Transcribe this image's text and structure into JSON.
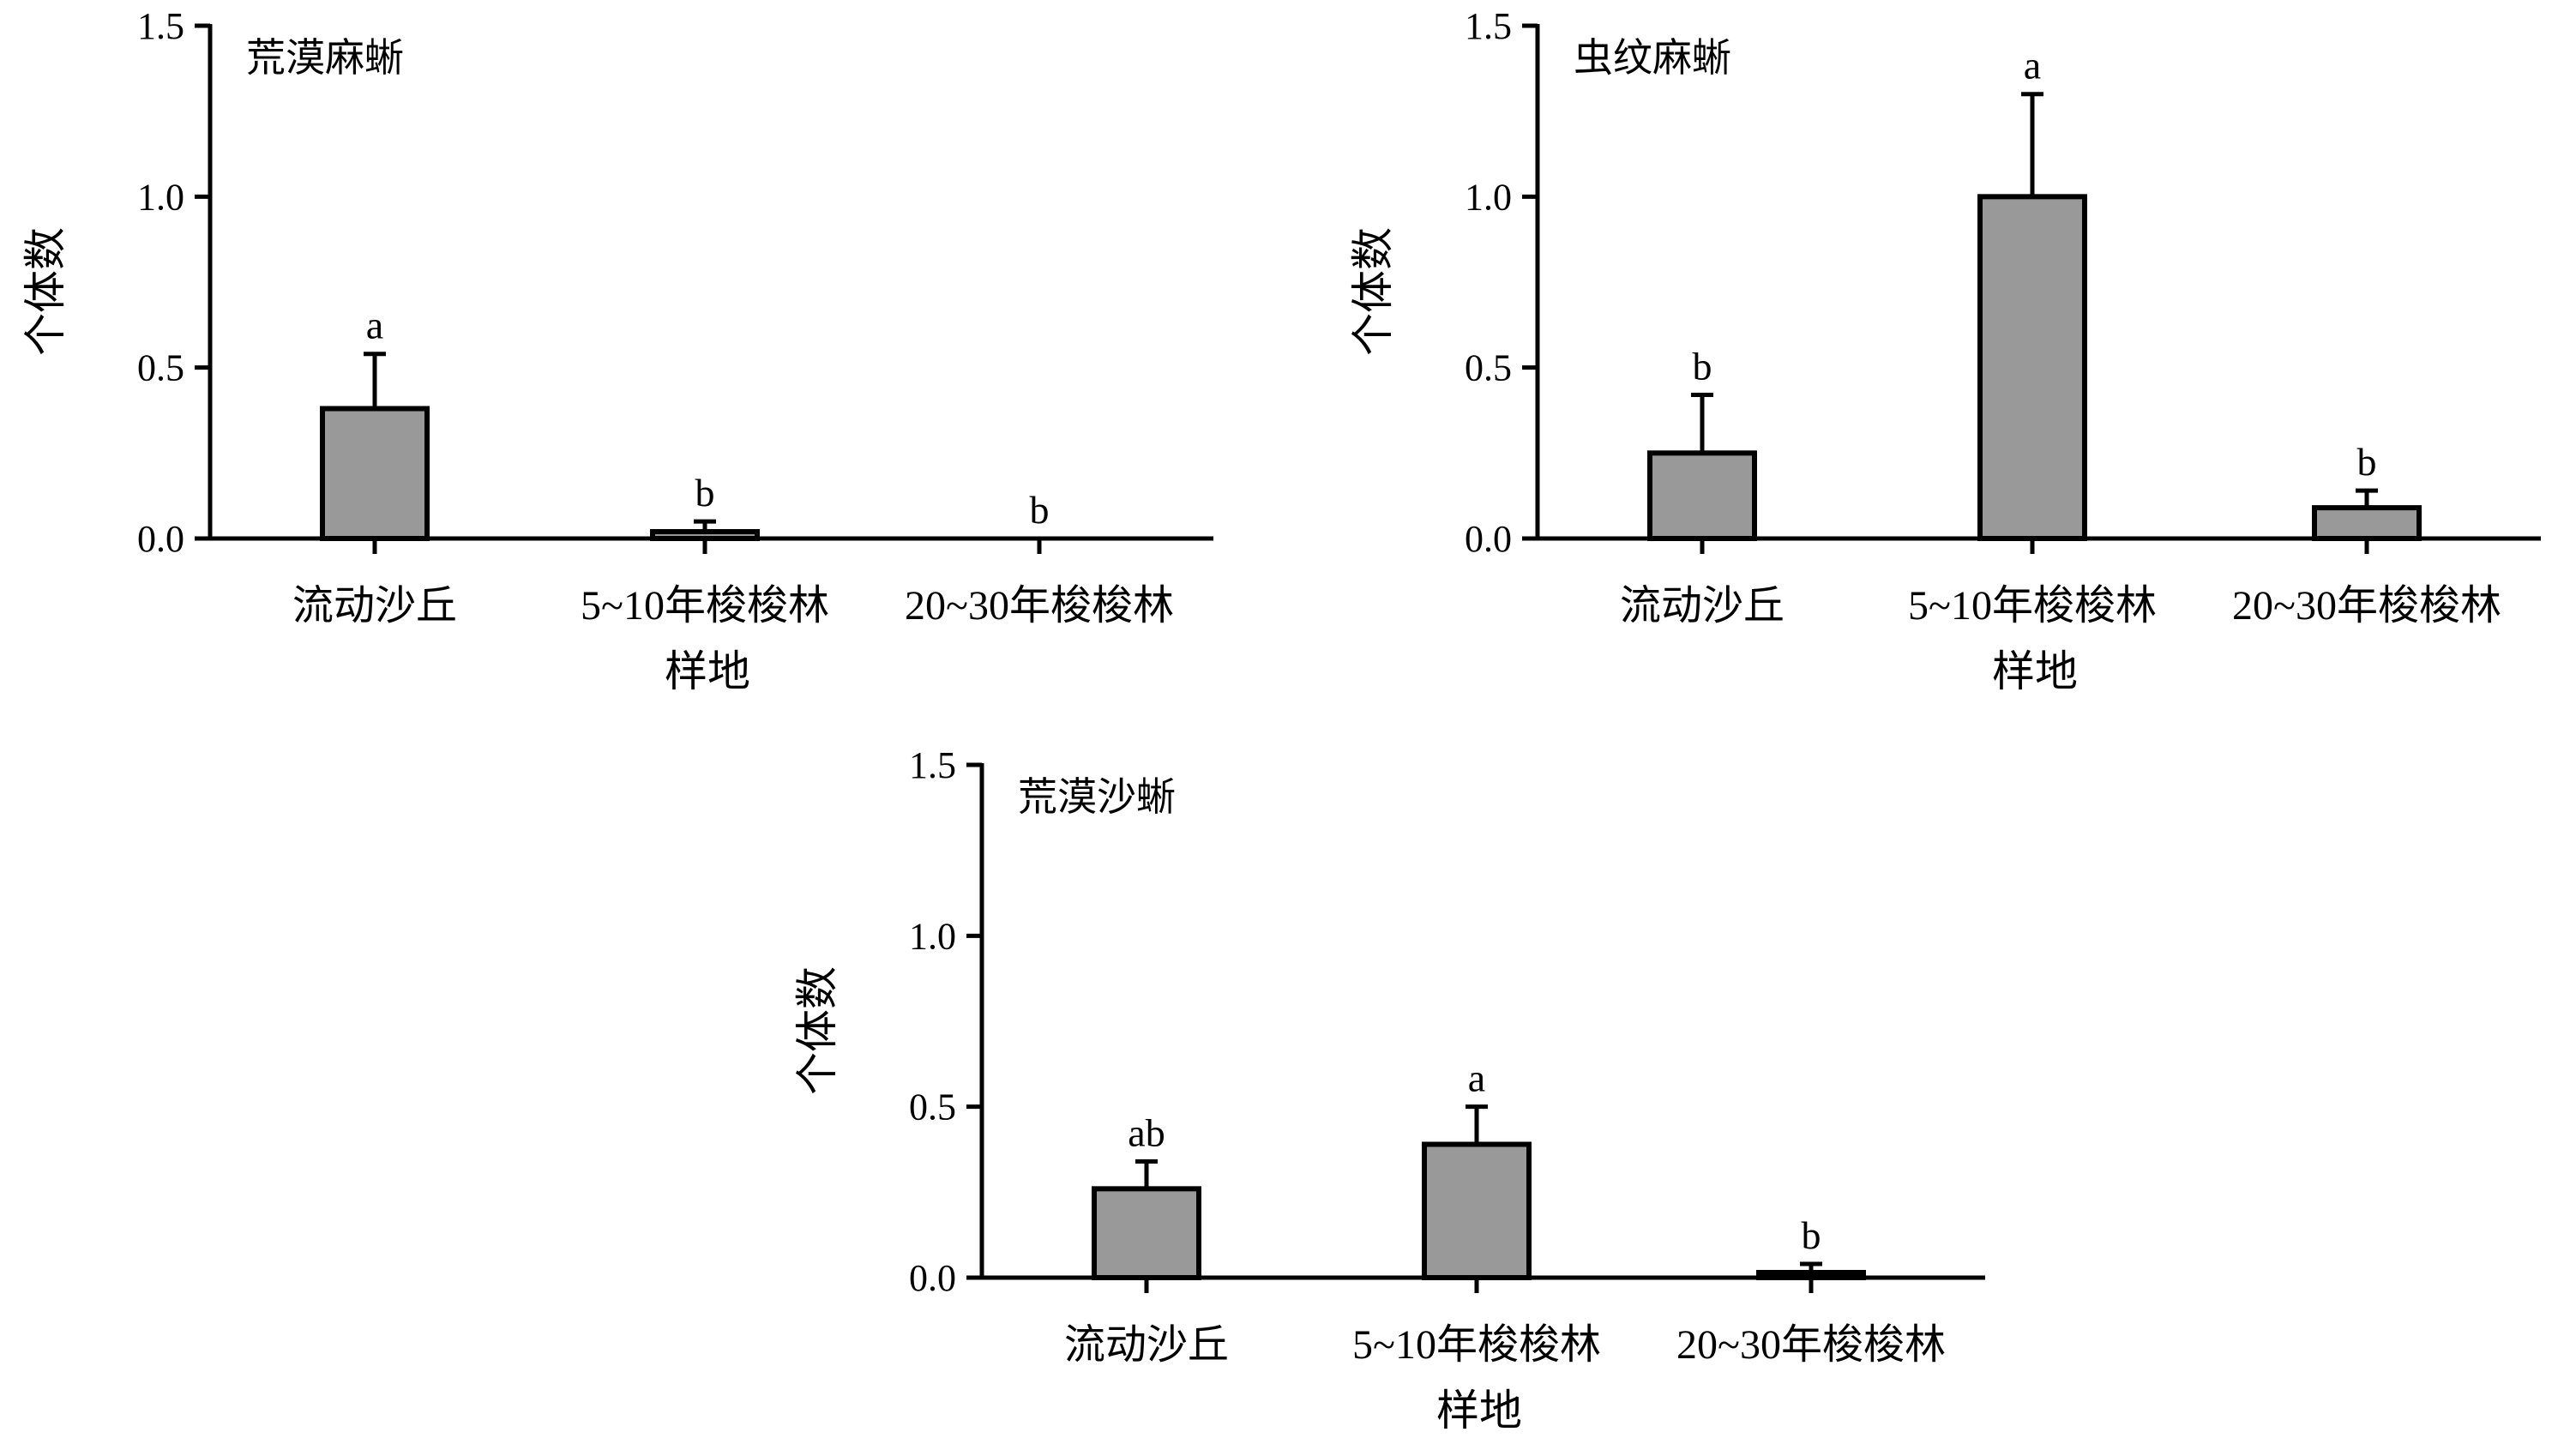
{
  "chart_data": [
    {
      "type": "bar",
      "title": "荒漠麻蜥",
      "xlabel": "样地",
      "ylabel": "个体数",
      "categories": [
        "流动沙丘",
        "5~10年梭梭林",
        "20~30年梭梭林"
      ],
      "values": [
        0.38,
        0.02,
        0.0
      ],
      "errors": [
        0.16,
        0.03,
        0.0
      ],
      "significance": [
        "a",
        "b",
        "b"
      ],
      "ylim": [
        0,
        1.5
      ],
      "yticks": [
        "0.0",
        "0.5",
        "1.0",
        "1.5"
      ],
      "bar_color": "#999999",
      "grid": false,
      "legend": "none"
    },
    {
      "type": "bar",
      "title": "虫纹麻蜥",
      "xlabel": "样地",
      "ylabel": "个体数",
      "categories": [
        "流动沙丘",
        "5~10年梭梭林",
        "20~30年梭梭林"
      ],
      "values": [
        0.25,
        1.0,
        0.09
      ],
      "errors": [
        0.17,
        0.3,
        0.05
      ],
      "significance": [
        "b",
        "a",
        "b"
      ],
      "ylim": [
        0,
        1.5
      ],
      "yticks": [
        "0.0",
        "0.5",
        "1.0",
        "1.5"
      ],
      "bar_color": "#999999",
      "grid": false,
      "legend": "none"
    },
    {
      "type": "bar",
      "title": "荒漠沙蜥",
      "xlabel": "样地",
      "ylabel": "个体数",
      "categories": [
        "流动沙丘",
        "5~10年梭梭林",
        "20~30年梭梭林"
      ],
      "values": [
        0.26,
        0.39,
        0.01
      ],
      "errors": [
        0.08,
        0.11,
        0.03
      ],
      "significance": [
        "ab",
        "a",
        "b"
      ],
      "ylim": [
        0,
        1.5
      ],
      "yticks": [
        "0.0",
        "0.5",
        "1.0",
        "1.5"
      ],
      "bar_color": "#999999",
      "grid": false,
      "legend": "none"
    }
  ]
}
